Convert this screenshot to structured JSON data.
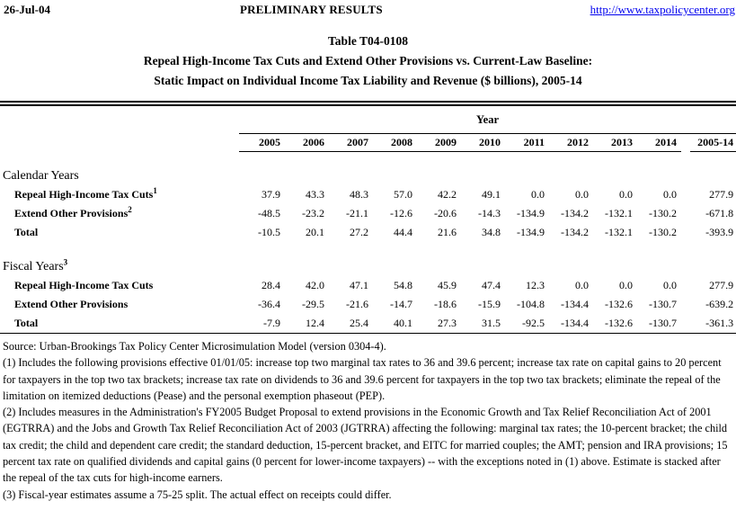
{
  "header": {
    "date": "26-Jul-04",
    "status": "PRELIMINARY RESULTS",
    "url": "http://www.taxpolicycenter.org"
  },
  "title": {
    "line1": "Table T04-0108",
    "line2": "Repeal High-Income Tax Cuts and Extend Other Provisions vs. Current-Law Baseline:",
    "line3": "Static Impact on Individual Income Tax Liability and Revenue ($ billions), 2005-14"
  },
  "colors": {
    "background": "#ffffff",
    "text": "#000000",
    "link": "#0000EE"
  },
  "table": {
    "year_label": "Year",
    "columns": [
      "2005",
      "2006",
      "2007",
      "2008",
      "2009",
      "2010",
      "2011",
      "2012",
      "2013",
      "2014",
      "2005-14"
    ],
    "sections": [
      {
        "label": "Calendar Years",
        "sup": "",
        "rows": [
          {
            "label": "Repeal High-Income Tax Cuts",
            "sup": "1",
            "values": [
              "37.9",
              "43.3",
              "48.3",
              "57.0",
              "42.2",
              "49.1",
              "0.0",
              "0.0",
              "0.0",
              "0.0",
              "277.9"
            ]
          },
          {
            "label": "Extend Other Provisions",
            "sup": "2",
            "values": [
              "-48.5",
              "-23.2",
              "-21.1",
              "-12.6",
              "-20.6",
              "-14.3",
              "-134.9",
              "-134.2",
              "-132.1",
              "-130.2",
              "-671.8"
            ]
          },
          {
            "label": "Total",
            "sup": "",
            "values": [
              "-10.5",
              "20.1",
              "27.2",
              "44.4",
              "21.6",
              "34.8",
              "-134.9",
              "-134.2",
              "-132.1",
              "-130.2",
              "-393.9"
            ]
          }
        ]
      },
      {
        "label": "Fiscal Years",
        "sup": "3",
        "rows": [
          {
            "label": "Repeal High-Income Tax Cuts",
            "sup": "",
            "values": [
              "28.4",
              "42.0",
              "47.1",
              "54.8",
              "45.9",
              "47.4",
              "12.3",
              "0.0",
              "0.0",
              "0.0",
              "277.9"
            ]
          },
          {
            "label": "Extend Other Provisions",
            "sup": "",
            "values": [
              "-36.4",
              "-29.5",
              "-21.6",
              "-14.7",
              "-18.6",
              "-15.9",
              "-104.8",
              "-134.4",
              "-132.6",
              "-130.7",
              "-639.2"
            ]
          },
          {
            "label": "Total",
            "sup": "",
            "values": [
              "-7.9",
              "12.4",
              "25.4",
              "40.1",
              "27.3",
              "31.5",
              "-92.5",
              "-134.4",
              "-132.6",
              "-130.7",
              "-361.3"
            ]
          }
        ]
      }
    ]
  },
  "notes": {
    "source": "Source: Urban-Brookings Tax Policy Center Microsimulation Model (version 0304-4).",
    "note1": "(1) Includes the following provisions effective 01/01/05: increase top two marginal tax rates to 36 and 39.6 percent; increase tax rate on capital gains to 20 percent for taxpayers in the top two tax brackets; increase tax rate on dividends to 36 and 39.6 percent for taxpayers in the top two tax brackets; eliminate the repeal of the limitation on itemized deductions (Pease) and the personal exemption phaseout (PEP).",
    "note2": "(2) Includes measures in the Administration's FY2005 Budget Proposal to extend provisions in the Economic Growth and Tax Relief Reconciliation Act of 2001 (EGTRRA) and the Jobs and Growth Tax Relief Reconciliation Act of 2003 (JGTRRA) affecting the following: marginal tax rates; the 10-percent bracket; the child tax credit; the child and dependent care credit; the standard deduction, 15-percent bracket, and EITC for married couples; the AMT; pension and IRA provisions; 15 percent tax rate on qualified dividends and capital gains (0 percent for lower-income taxpayers) -- with the exceptions noted in (1) above. Estimate is stacked after the repeal of the tax cuts for high-income earners.",
    "note3": "(3) Fiscal-year estimates assume a 75-25 split.  The actual effect on receipts could differ."
  }
}
